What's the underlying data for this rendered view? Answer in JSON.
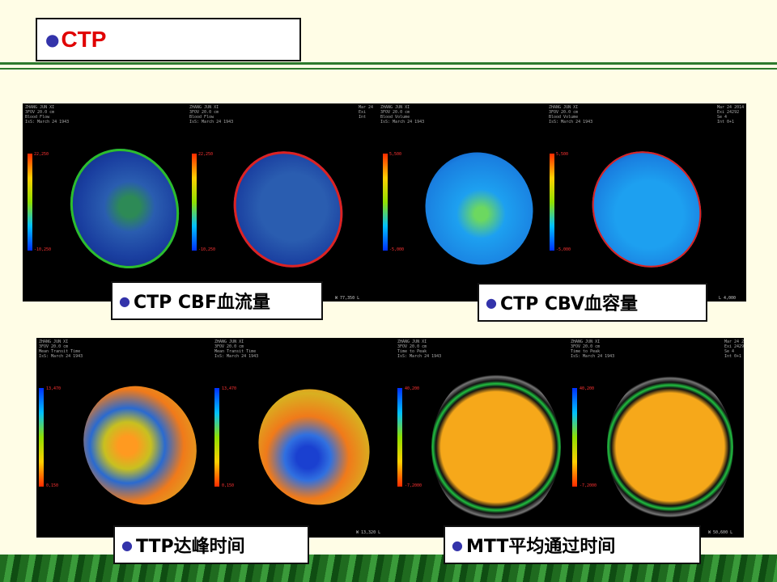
{
  "slide": {
    "title": "CTP",
    "colors": {
      "title": "#e00000",
      "bullet": "#3333aa",
      "rule": "#2d7a2d",
      "background": "#fffde6"
    }
  },
  "top_panel": {
    "meta_left": "ZHANG JUN XI\n3FOV 20.0 cm\nBlood Flow\nIsS: March 24 1943",
    "meta_left_2": "ZHANG JUN XI\n3FOV 20.0 cm\nBlood Flow\nIsS: March 24 1943",
    "meta_right": "Mar 24\nExi\nInt",
    "meta_left_3": "ZHANG JUN XI\n3FOV 20.0 cm\nBlood Volume\nIsS: March 24 1943",
    "meta_left_4": "ZHANG JUN XI\n3FOV 20.0 cm\nBlood Volume\nIsS: March 24 1943",
    "meta_right_2": "Mar 24 2014\nExi 24292\nSe 4\nInt 0+1",
    "scale_top_1": "22,250",
    "scale_bot_1": "-10,250",
    "scale_top_2": "22,250",
    "scale_bot_2": "-10,250",
    "scale_top_3": "5,500",
    "scale_bot_3": "-5,000",
    "scale_top_4": "5,500",
    "scale_bot_4": "-5,000",
    "footer_wl_1": "W 77,350 L",
    "footer_wl_2": "L 4,000"
  },
  "bottom_panel": {
    "meta_left": "ZHANG JUN XI\n3FOV 20.0 cm\nMean Transit Time\nIsS: March 24 1943",
    "meta_left_2": "ZHANG JUN XI\n3FOV 20.0 cm\nMean Transit Time\nIsS: March 24 1943",
    "meta_left_3": "ZHANG JUN XI\n3FOV 20.0 cm\nTime to Peak\nIsS: March 24 1943",
    "meta_left_4": "ZHANG JUN XI\n3FOV 20.0 cm\nTime to Peak\nIsS: March 24 1943",
    "meta_right": "Mar 24 2014\nExi 24292\nSe 4\nInt 0+1",
    "scale_top_1": "13,470",
    "scale_bot_1": "0,150",
    "scale_top_2": "13,470",
    "scale_bot_2": "0,150",
    "scale_top_3": "40,200",
    "scale_bot_3": "-7,2000",
    "scale_top_4": "40,200",
    "scale_bot_4": "-7,2000",
    "footer_wl_1": "W 13,320 L",
    "footer_wl_2": "W 50,600 L"
  },
  "labels": {
    "cbf": "CTP  CBF血流量",
    "cbv": "CTP  CBV血容量",
    "ttp": "TTP达峰时间",
    "mtt": "MTT平均通过时间"
  }
}
